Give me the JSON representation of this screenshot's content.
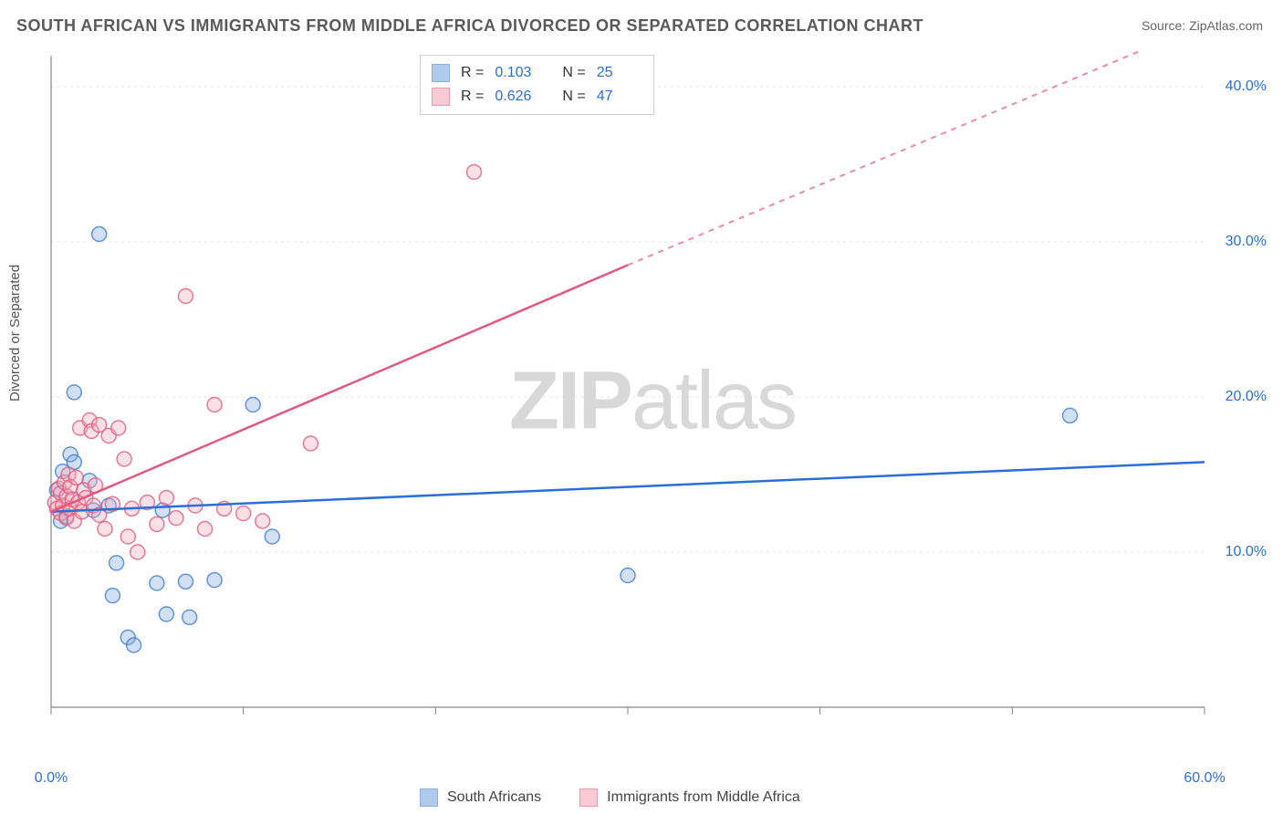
{
  "title": "SOUTH AFRICAN VS IMMIGRANTS FROM MIDDLE AFRICA DIVORCED OR SEPARATED CORRELATION CHART",
  "source": "Source: ZipAtlas.com",
  "y_axis_label": "Divorced or Separated",
  "watermark_a": "ZIP",
  "watermark_b": "atlas",
  "chart": {
    "type": "scatter",
    "xlim": [
      0,
      60
    ],
    "ylim": [
      0,
      42
    ],
    "x_ticks": [
      0,
      10,
      20,
      30,
      40,
      50,
      60
    ],
    "x_tick_labels": {
      "0": "0.0%",
      "60": "60.0%"
    },
    "y_ticks": [
      10,
      20,
      30,
      40
    ],
    "y_tick_labels": {
      "10": "10.0%",
      "20": "20.0%",
      "30": "30.0%",
      "40": "40.0%"
    },
    "grid_color": "#e5e5e5",
    "axis_color": "#888888",
    "background_color": "#ffffff",
    "marker_radius": 8,
    "marker_fill_opacity": 0.35,
    "marker_stroke_width": 1.5,
    "series": [
      {
        "name": "South Africans",
        "color": "#7ba8dd",
        "stroke": "#3f7ccf",
        "trend_color": "#2b6fd6",
        "trend_solid": [
          [
            0,
            12.6
          ],
          [
            60,
            15.8
          ]
        ],
        "trend_dashed": null,
        "legend_R": "0.103",
        "legend_N": "25",
        "points": [
          [
            0.3,
            14.0
          ],
          [
            0.5,
            12.0
          ],
          [
            0.6,
            15.2
          ],
          [
            0.8,
            12.3
          ],
          [
            1.0,
            16.3
          ],
          [
            1.2,
            15.8
          ],
          [
            1.2,
            20.3
          ],
          [
            2.0,
            14.6
          ],
          [
            2.2,
            12.7
          ],
          [
            2.5,
            30.5
          ],
          [
            3.0,
            13.0
          ],
          [
            3.2,
            7.2
          ],
          [
            3.4,
            9.3
          ],
          [
            4.0,
            4.5
          ],
          [
            4.3,
            4.0
          ],
          [
            5.5,
            8.0
          ],
          [
            5.8,
            12.7
          ],
          [
            6.0,
            6.0
          ],
          [
            7.0,
            8.1
          ],
          [
            7.2,
            5.8
          ],
          [
            8.5,
            8.2
          ],
          [
            10.5,
            19.5
          ],
          [
            11.5,
            11.0
          ],
          [
            30.0,
            8.5
          ],
          [
            53.0,
            18.8
          ]
        ]
      },
      {
        "name": "Immigrants from Middle Africa",
        "color": "#f4a8b8",
        "stroke": "#e05a80",
        "trend_color": "#e05a80",
        "trend_solid": [
          [
            0,
            12.6
          ],
          [
            30,
            28.5
          ]
        ],
        "trend_dashed": [
          [
            30,
            28.5
          ],
          [
            58,
            43.0
          ]
        ],
        "legend_R": "0.626",
        "legend_N": "47",
        "points": [
          [
            0.2,
            13.2
          ],
          [
            0.3,
            12.8
          ],
          [
            0.4,
            14.1
          ],
          [
            0.5,
            12.5
          ],
          [
            0.5,
            13.8
          ],
          [
            0.6,
            13.0
          ],
          [
            0.7,
            14.5
          ],
          [
            0.8,
            12.2
          ],
          [
            0.8,
            13.6
          ],
          [
            0.9,
            15.0
          ],
          [
            1.0,
            12.8
          ],
          [
            1.0,
            14.2
          ],
          [
            1.1,
            13.4
          ],
          [
            1.2,
            12.0
          ],
          [
            1.3,
            14.8
          ],
          [
            1.4,
            13.2
          ],
          [
            1.5,
            18.0
          ],
          [
            1.6,
            12.6
          ],
          [
            1.7,
            14.0
          ],
          [
            1.8,
            13.5
          ],
          [
            2.0,
            18.5
          ],
          [
            2.1,
            17.8
          ],
          [
            2.2,
            13.0
          ],
          [
            2.3,
            14.3
          ],
          [
            2.5,
            12.4
          ],
          [
            2.5,
            18.2
          ],
          [
            2.8,
            11.5
          ],
          [
            3.0,
            17.5
          ],
          [
            3.2,
            13.1
          ],
          [
            3.5,
            18.0
          ],
          [
            3.8,
            16.0
          ],
          [
            4.0,
            11.0
          ],
          [
            4.2,
            12.8
          ],
          [
            4.5,
            10.0
          ],
          [
            5.0,
            13.2
          ],
          [
            5.5,
            11.8
          ],
          [
            6.0,
            13.5
          ],
          [
            6.5,
            12.2
          ],
          [
            7.0,
            26.5
          ],
          [
            7.5,
            13.0
          ],
          [
            8.0,
            11.5
          ],
          [
            8.5,
            19.5
          ],
          [
            9.0,
            12.8
          ],
          [
            10.0,
            12.5
          ],
          [
            11.0,
            12.0
          ],
          [
            13.5,
            17.0
          ],
          [
            22.0,
            34.5
          ]
        ]
      }
    ]
  },
  "legend_bottom": [
    {
      "label": "South Africans"
    },
    {
      "label": "Immigrants from Middle Africa"
    }
  ]
}
